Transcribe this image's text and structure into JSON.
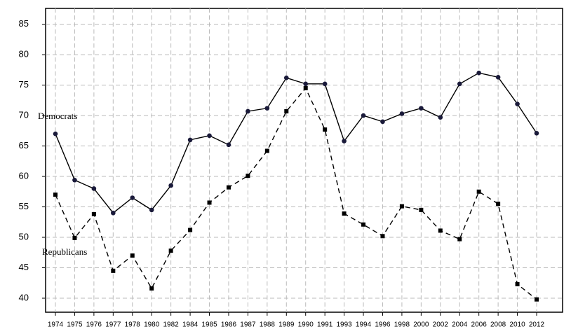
{
  "chart_data": {
    "type": "line",
    "categories": [
      "1974",
      "1975",
      "1976",
      "1977",
      "1978",
      "1980",
      "1982",
      "1984",
      "1985",
      "1986",
      "1987",
      "1988",
      "1989",
      "1990",
      "1991",
      "1993",
      "1994",
      "1996",
      "1998",
      "2000",
      "2002",
      "2004",
      "2006",
      "2008",
      "2010",
      "2012"
    ],
    "series": [
      {
        "name": "Democrats",
        "color": "#000000",
        "dashed": false,
        "marker": "circle",
        "values": [
          67,
          59.4,
          58,
          54,
          56.5,
          54.5,
          58.5,
          66,
          66.7,
          65.2,
          70.7,
          71.2,
          76.2,
          75.2,
          75.2,
          65.8,
          70,
          69,
          70.3,
          71.2,
          69.7,
          75.2,
          77,
          76.3,
          71.9,
          67.1
        ]
      },
      {
        "name": "Republicans",
        "color": "#000000",
        "dashed": true,
        "marker": "square",
        "values": [
          57,
          49.9,
          53.8,
          44.5,
          47,
          41.6,
          47.8,
          51.2,
          55.7,
          58.2,
          60.1,
          64.2,
          70.7,
          74.5,
          67.7,
          53.9,
          52.1,
          50.2,
          55.1,
          54.5,
          51.1,
          49.7,
          57.5,
          55.5,
          42.3,
          39.8
        ]
      }
    ],
    "ylim": [
      37.7,
      87.6
    ],
    "yticks": [
      40,
      45,
      50,
      55,
      60,
      65,
      70,
      75,
      80,
      85
    ],
    "grid": true
  }
}
